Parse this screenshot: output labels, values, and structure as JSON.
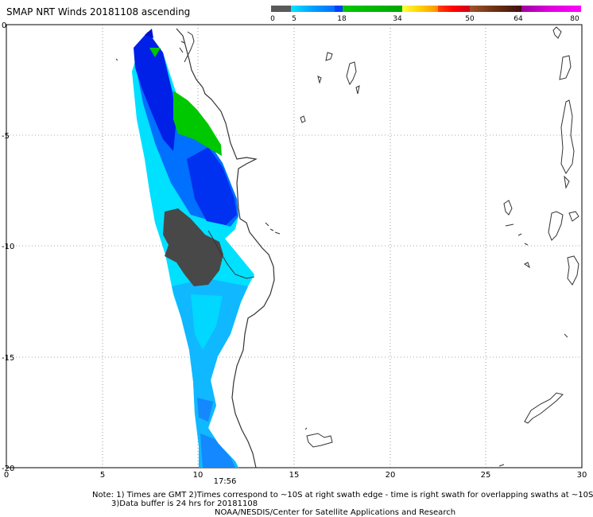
{
  "title": "SMAP NRT Winds 20181108 ascending",
  "colorbar": {
    "labels": [
      "0",
      "5",
      "18",
      "34",
      "50",
      "64",
      "80"
    ],
    "colors": [
      "#5a5a5a",
      "#00e5ff",
      "#0060ff",
      "#00c000",
      "#ffff00",
      "#ff8000",
      "#ff0000",
      "#8b4513",
      "#ff00ff"
    ]
  },
  "map": {
    "x_ticks": [
      "0",
      "5",
      "10",
      "15",
      "20",
      "25",
      "30"
    ],
    "y_ticks": [
      "0",
      "-5",
      "-10",
      "-15",
      "-20"
    ],
    "time_label": "17:56",
    "wind_colors": {
      "dark_blue": "#0020e0",
      "blue": "#0080ff",
      "light_blue": "#20b0ff",
      "cyan": "#00e0ff",
      "green": "#00c800",
      "gray": "#484848"
    }
  },
  "notes": [
    "Note: 1) Times are GMT 2)Times correspond to ~10S at right swath edge - time is right swath for overlapping swaths at ~10S",
    "3)Data buffer is 24 hrs for 20181108",
    "NOAA/NESDIS/Center for Satellite Applications and Research"
  ]
}
